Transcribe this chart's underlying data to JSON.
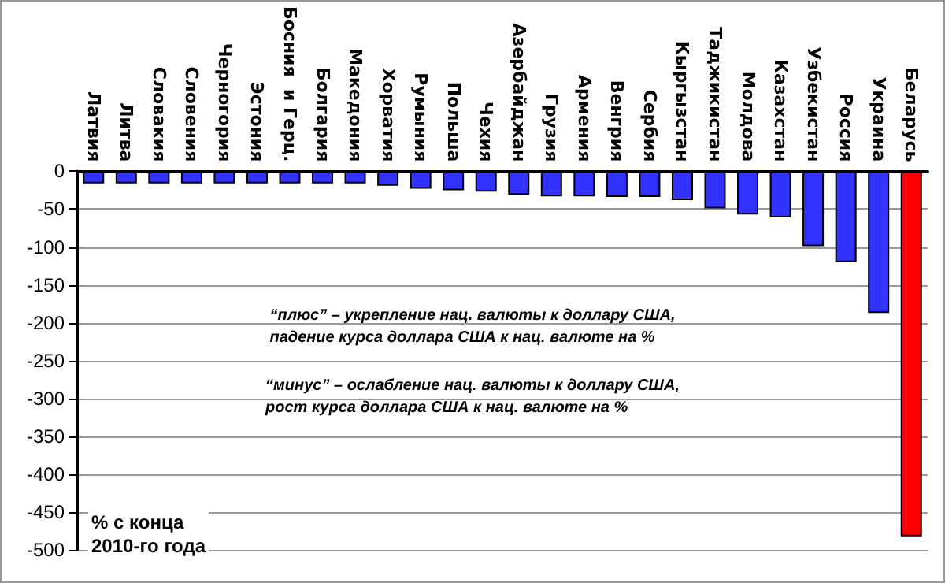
{
  "chart_data": {
    "type": "bar",
    "categories": [
      "Латвия",
      "Литва",
      "Словакия",
      "Словения",
      "Черногория",
      "Эстония",
      "Босния  и Герц.",
      "Болгария",
      "Македония",
      "Хорватия",
      "Румыния",
      "Польша",
      "Чехия",
      "Азербайджан",
      "Грузия",
      "Армения",
      "Венгрия",
      "Сербия",
      "Кыргызстан",
      "Таджикистан",
      "Молдова",
      "Казахстан",
      "Узбекистан",
      "Россия",
      "Украина",
      "Беларусь"
    ],
    "values": [
      -16,
      -16,
      -16,
      -16,
      -16,
      -16,
      -16,
      -16,
      -16,
      -19,
      -23,
      -25,
      -27,
      -31,
      -33,
      -33,
      -34,
      -34,
      -38,
      -49,
      -57,
      -61,
      -99,
      -120,
      -187,
      -482
    ],
    "colors": [
      "#3333ff",
      "#3333ff",
      "#3333ff",
      "#3333ff",
      "#3333ff",
      "#3333ff",
      "#3333ff",
      "#3333ff",
      "#3333ff",
      "#3333ff",
      "#3333ff",
      "#3333ff",
      "#3333ff",
      "#3333ff",
      "#3333ff",
      "#3333ff",
      "#3333ff",
      "#3333ff",
      "#3333ff",
      "#3333ff",
      "#3333ff",
      "#3333ff",
      "#3333ff",
      "#3333ff",
      "#3333ff",
      "#ff0000"
    ],
    "ylim": [
      -500,
      0
    ],
    "yticks": [
      -500,
      -450,
      -400,
      -350,
      -300,
      -250,
      -200,
      -150,
      -100,
      -50,
      0
    ],
    "grid": "y",
    "annotations": [
      "“плюс” – укрепление нац. валюты к доллару США,\nпадение курса доллара США к нац. валюте на %",
      "“минус” – ослабление нац. валюты к доллару США,\nрост курса доллара США к нац. валюте на %",
      "% с конца\n2010-го года"
    ]
  }
}
